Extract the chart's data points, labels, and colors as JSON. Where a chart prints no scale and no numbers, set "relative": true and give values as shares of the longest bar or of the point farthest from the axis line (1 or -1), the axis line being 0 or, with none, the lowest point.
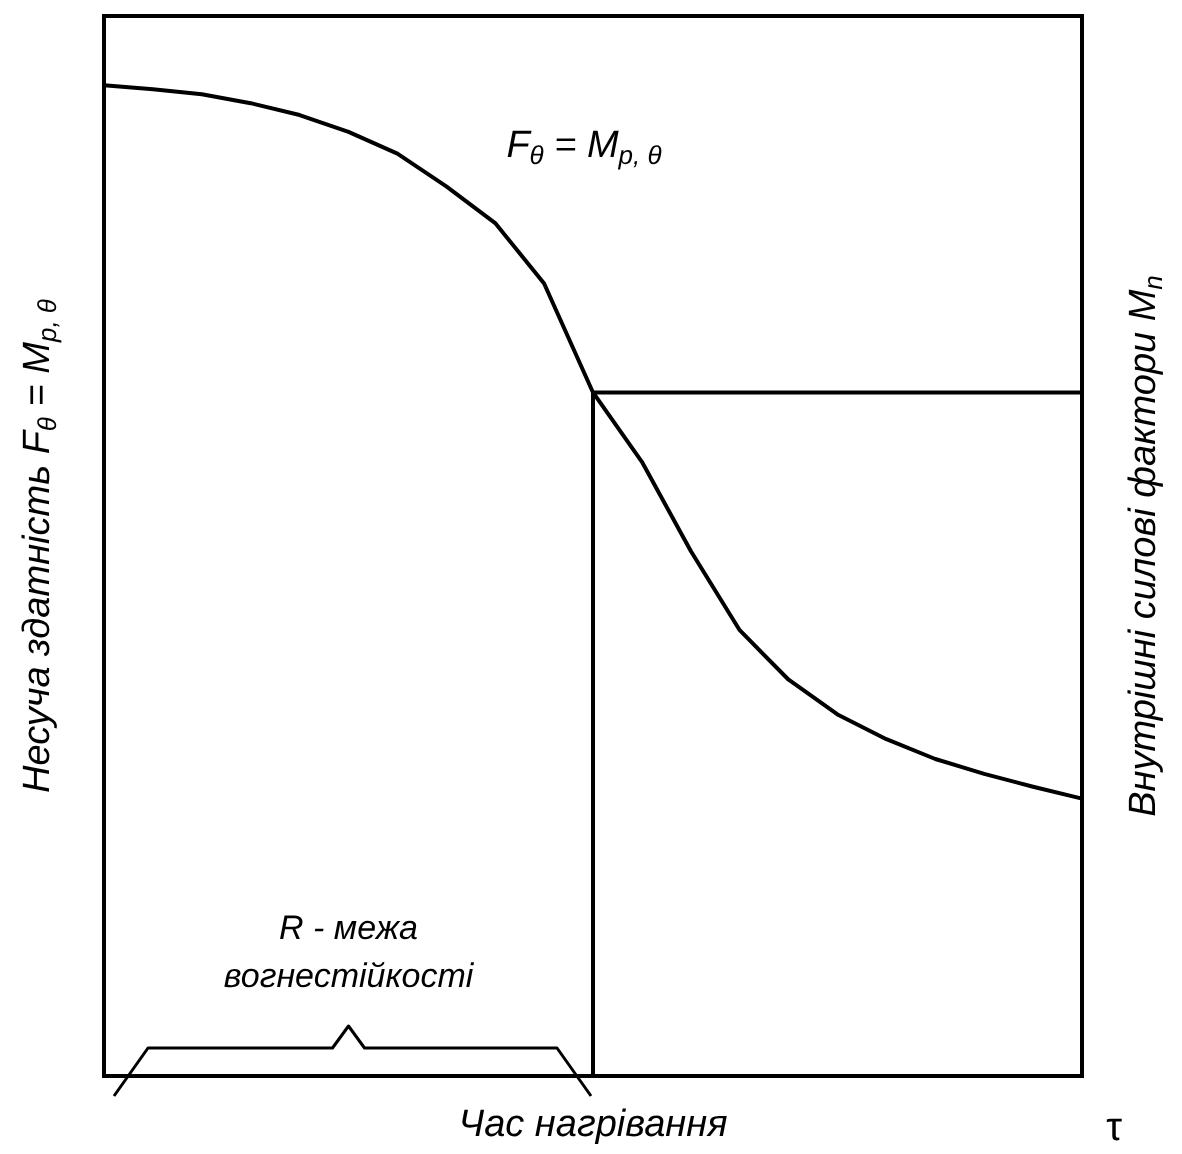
{
  "chart_data": {
    "type": "line",
    "relative": true,
    "xlabel": "Час нагрівання",
    "ylabel": "Несуча здатність F$_{θ}$ = M$_{p, θ}$",
    "y2label": "Внутрішні силові фактори M$_{n}$",
    "grid": false,
    "categories": [
      null,
      null,
      null,
      null,
      null,
      null,
      null,
      null,
      null,
      null,
      null,
      null,
      null,
      null,
      null,
      null,
      null,
      null,
      null,
      null,
      null
    ],
    "series": [
      {
        "color": "#000000",
        "values": [
          1,
          0.996,
          0.991,
          0.982,
          0.97,
          0.953,
          0.931,
          0.898,
          0.861,
          0.8,
          0.69,
          0.62,
          0.53,
          0.45,
          0.4,
          0.365,
          0.34,
          0.32,
          0.305,
          0.292,
          0.28
        ]
      },
      {
        "type": "step",
        "color": "#000000",
        "values": [
          null,
          null,
          null,
          null,
          null,
          null,
          null,
          null,
          null,
          0,
          0.69,
          0.69,
          0.69,
          0.69,
          0.69,
          0.69,
          0.69,
          0.69,
          0.69,
          0.69,
          0.69
        ]
      }
    ],
    "annotations": [
      "F$_{θ}$ = M$_{p, θ}$",
      "R - межа\nвогнестійкості",
      "τ"
    ]
  }
}
